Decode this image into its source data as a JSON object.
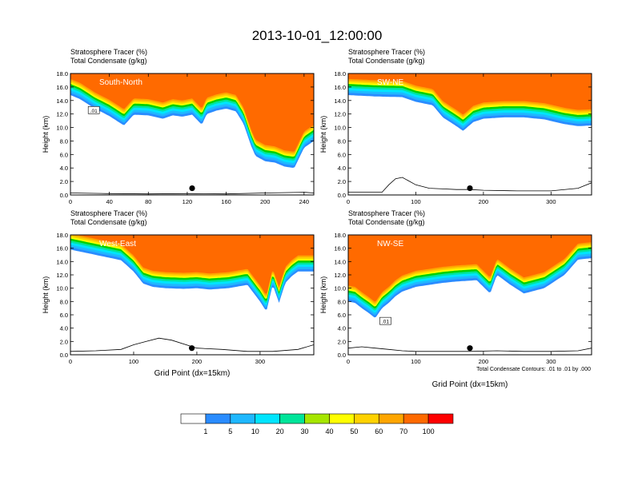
{
  "title": "2013-10-01_12:00:00",
  "colors": {
    "levels": [
      "#ffffff",
      "#2a8cff",
      "#1fb8ff",
      "#00e5ff",
      "#00e59a",
      "#00d100",
      "#a6e600",
      "#ffff00",
      "#ffd200",
      "#ffa600",
      "#ff6a00",
      "#ff0000"
    ],
    "contour": "#000000",
    "axis": "#000000",
    "marker": "#000000"
  },
  "colorbar": {
    "labels": [
      "1",
      "5",
      "10",
      "20",
      "30",
      "40",
      "50",
      "60",
      "70",
      "100"
    ]
  },
  "contour_note": "Total Condensate Contours: .01 to .01 by .000",
  "chart_data": [
    {
      "type": "area",
      "name": "South-North",
      "label": "South-North",
      "header_line1": "Stratosphere Tracer   (%)",
      "header_line2": "Total Condensate   (g/kg)",
      "ylabel": "Height (km)",
      "xlabel": "",
      "xlim": [
        0,
        250
      ],
      "ylim": [
        0,
        18
      ],
      "xticks": [
        0,
        40,
        80,
        120,
        160,
        200,
        240
      ],
      "xtick_labels": [
        "0",
        "40",
        "80",
        "120",
        "160",
        "200",
        "240"
      ],
      "yticks": [
        0,
        2,
        4,
        6,
        8,
        10,
        12,
        14,
        16,
        18
      ],
      "ytick_labels": [
        "0.0",
        "2.0",
        "4.0",
        "6.0",
        "8.0",
        "10.0",
        "12.0",
        "14.0",
        "16.0",
        "18.0"
      ],
      "contour_label": ".01",
      "tracer_base_x": [
        0,
        10,
        25,
        40,
        55,
        65,
        80,
        95,
        105,
        115,
        125,
        135,
        140,
        150,
        160,
        170,
        178,
        185,
        190,
        200,
        210,
        220,
        230,
        240,
        250
      ],
      "tracer_base_km": [
        14.8,
        14.2,
        12.8,
        11.7,
        10.3,
        11.9,
        11.8,
        11.3,
        11.8,
        11.6,
        11.9,
        10.4,
        12.0,
        12.5,
        12.8,
        12.4,
        10.5,
        7.5,
        5.8,
        5.0,
        4.8,
        4.2,
        4.0,
        7.0,
        8.0
      ],
      "terrain_x": [
        0,
        20,
        40,
        80,
        120,
        160,
        200,
        240,
        250
      ],
      "terrain_km": [
        0.3,
        0.25,
        0.2,
        0.15,
        0.2,
        0.15,
        0.3,
        0.4,
        0.3
      ],
      "marker": {
        "x": 125,
        "km": 1.0
      }
    },
    {
      "type": "area",
      "name": "SW-NE",
      "label": "SW-NE",
      "header_line1": "Stratosphere Tracer   (%)",
      "header_line2": "Total Condensate   (g/kg)",
      "ylabel": "Height (km)",
      "xlabel": "",
      "xlim": [
        0,
        360
      ],
      "ylim": [
        0,
        18
      ],
      "xticks": [
        0,
        100,
        200,
        300
      ],
      "xtick_labels": [
        "0",
        "100",
        "200",
        "300"
      ],
      "yticks": [
        0,
        2,
        4,
        6,
        8,
        10,
        12,
        14,
        16,
        18
      ],
      "ytick_labels": [
        "0.0",
        "2.0",
        "4.0",
        "6.0",
        "8.0",
        "10.0",
        "12.0",
        "14.0",
        "16.0",
        "18.0"
      ],
      "contour_label": "",
      "tracer_base_x": [
        0,
        40,
        80,
        100,
        125,
        140,
        160,
        170,
        185,
        200,
        230,
        260,
        290,
        320,
        340,
        360
      ],
      "tracer_base_km": [
        14.8,
        14.6,
        14.5,
        13.8,
        13.3,
        11.5,
        10.2,
        9.5,
        10.8,
        11.3,
        11.5,
        11.5,
        11.2,
        10.5,
        10.2,
        10.3
      ],
      "terrain_x": [
        0,
        50,
        60,
        70,
        80,
        100,
        120,
        140,
        160,
        180,
        200,
        250,
        300,
        340,
        360
      ],
      "terrain_km": [
        0.4,
        0.4,
        1.5,
        2.4,
        2.6,
        1.5,
        1.0,
        0.9,
        0.8,
        0.8,
        0.7,
        0.6,
        0.6,
        1.0,
        1.8
      ],
      "marker": {
        "x": 180,
        "km": 1.0
      }
    },
    {
      "type": "area",
      "name": "West-East",
      "label": "West-East",
      "header_line1": "Stratosphere Tracer   (%)",
      "header_line2": "Total Condensate   (g/kg)",
      "ylabel": "Height (km)",
      "xlabel": "Grid Point (dx=15km)",
      "xlim": [
        0,
        385
      ],
      "ylim": [
        0,
        18
      ],
      "xticks": [
        0,
        100,
        200,
        300
      ],
      "xtick_labels": [
        "0",
        "100",
        "200",
        "300"
      ],
      "yticks": [
        0,
        2,
        4,
        6,
        8,
        10,
        12,
        14,
        16,
        18
      ],
      "ytick_labels": [
        "0.0",
        "2.0",
        "4.0",
        "6.0",
        "8.0",
        "10.0",
        "12.0",
        "14.0",
        "16.0",
        "18.0"
      ],
      "contour_label": "",
      "tracer_base_x": [
        0,
        30,
        60,
        80,
        100,
        115,
        130,
        150,
        180,
        200,
        220,
        250,
        280,
        300,
        310,
        320,
        330,
        340,
        350,
        360,
        385
      ],
      "tracer_base_km": [
        15.8,
        15.2,
        14.6,
        14.2,
        12.5,
        10.7,
        10.2,
        10.0,
        9.9,
        10.0,
        9.8,
        10.0,
        10.5,
        8.0,
        6.5,
        10.5,
        7.8,
        10.8,
        11.8,
        12.5,
        12.5
      ],
      "terrain_x": [
        0,
        40,
        80,
        100,
        120,
        140,
        160,
        200,
        240,
        280,
        320,
        360,
        385
      ],
      "terrain_km": [
        0.5,
        0.6,
        0.8,
        1.5,
        2.0,
        2.5,
        2.2,
        1.0,
        0.8,
        0.5,
        0.5,
        0.8,
        1.5
      ],
      "marker": {
        "x": 192,
        "km": 1.0
      }
    },
    {
      "type": "area",
      "name": "NW-SE",
      "label": "NW-SE",
      "header_line1": "Stratosphere Tracer   (%)",
      "header_line2": "Total Condensate   (g/kg)",
      "ylabel": "Height (km)",
      "xlabel": "Grid Point (dx=15km)",
      "xlim": [
        0,
        360
      ],
      "ylim": [
        0,
        18
      ],
      "xticks": [
        0,
        100,
        200,
        300
      ],
      "xtick_labels": [
        "0",
        "100",
        "200",
        "300"
      ],
      "yticks": [
        0,
        2,
        4,
        6,
        8,
        10,
        12,
        14,
        16,
        18
      ],
      "ytick_labels": [
        "0.0",
        "2.0",
        "4.0",
        "6.0",
        "8.0",
        "10.0",
        "12.0",
        "14.0",
        "16.0",
        "18.0"
      ],
      "contour_label": ".01",
      "tracer_base_x": [
        0,
        10,
        20,
        30,
        40,
        50,
        60,
        70,
        80,
        100,
        120,
        140,
        160,
        190,
        210,
        220,
        240,
        260,
        290,
        320,
        340,
        360
      ],
      "tracer_base_km": [
        8.0,
        7.8,
        7.0,
        6.3,
        5.5,
        7.0,
        7.8,
        8.8,
        9.5,
        10.2,
        10.5,
        10.8,
        11.0,
        11.2,
        9.2,
        12.0,
        10.5,
        9.2,
        10.0,
        12.0,
        14.3,
        14.5
      ],
      "terrain_x": [
        0,
        20,
        40,
        60,
        80,
        100,
        140,
        180,
        220,
        260,
        300,
        340,
        360
      ],
      "terrain_km": [
        1.0,
        1.2,
        1.0,
        0.8,
        0.6,
        0.5,
        0.5,
        0.5,
        0.6,
        0.5,
        0.5,
        0.6,
        1.0
      ],
      "marker": {
        "x": 180,
        "km": 1.0
      }
    }
  ]
}
